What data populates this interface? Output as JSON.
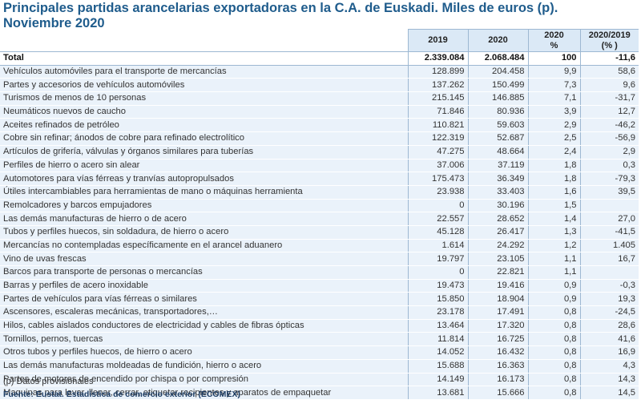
{
  "title_line1": "Principales partidas arancelarias exportadoras en la C.A. de Euskadi. Miles de euros (p).",
  "title_line2": "Noviembre 2020",
  "headers": {
    "col2019": "2019",
    "col2020": "2020",
    "col_share_top": "2020",
    "col_share_bottom": "%",
    "col_var_top": "2020/2019",
    "col_var_bottom": "(% )"
  },
  "total": {
    "label": "Total",
    "v2019": "2.339.084",
    "v2020": "2.068.484",
    "share": "100",
    "var": "-11,6"
  },
  "rows": [
    {
      "label": "Vehículos automóviles para el transporte de mercancías",
      "v2019": "128.899",
      "v2020": "204.458",
      "share": "9,9",
      "var": "58,6"
    },
    {
      "label": "Partes y accesorios de vehículos automóviles",
      "v2019": "137.262",
      "v2020": "150.499",
      "share": "7,3",
      "var": "9,6"
    },
    {
      "label": "Turismos de menos de  10 personas",
      "v2019": "215.145",
      "v2020": "146.885",
      "share": "7,1",
      "var": "-31,7"
    },
    {
      "label": "Neumáticos nuevos de caucho",
      "v2019": "71.846",
      "v2020": "80.936",
      "share": "3,9",
      "var": "12,7"
    },
    {
      "label": "Aceites refinados de petróleo",
      "v2019": "110.821",
      "v2020": "59.603",
      "share": "2,9",
      "var": "-46,2"
    },
    {
      "label": "Cobre sin refinar; ánodos de cobre para refinado electrolítico",
      "v2019": "122.319",
      "v2020": "52.687",
      "share": "2,5",
      "var": "-56,9"
    },
    {
      "label": "Artículos de grifería, válvulas y órganos similares para tuberías",
      "v2019": "47.275",
      "v2020": "48.664",
      "share": "2,4",
      "var": "2,9"
    },
    {
      "label": "Perfiles de hierro o acero sin alear",
      "v2019": "37.006",
      "v2020": "37.119",
      "share": "1,8",
      "var": "0,3"
    },
    {
      "label": "Automotores para vías férreas y tranvías autopropulsados",
      "v2019": "175.473",
      "v2020": "36.349",
      "share": "1,8",
      "var": "-79,3"
    },
    {
      "label": "Útiles intercambiables para herramientas de mano o máquinas herramienta",
      "v2019": "23.938",
      "v2020": "33.403",
      "share": "1,6",
      "var": "39,5"
    },
    {
      "label": "Remolcadores y barcos empujadores",
      "v2019": "0",
      "v2020": "30.196",
      "share": "1,5",
      "var": ""
    },
    {
      "label": "Las demás manufacturas de hierro o de acero",
      "v2019": "22.557",
      "v2020": "28.652",
      "share": "1,4",
      "var": "27,0"
    },
    {
      "label": "Tubos y perfiles huecos, sin soldadura, de hierro o acero",
      "v2019": "45.128",
      "v2020": "26.417",
      "share": "1,3",
      "var": "-41,5"
    },
    {
      "label": "Mercancías no contempladas específicamente en el arancel aduanero",
      "v2019": "1.614",
      "v2020": "24.292",
      "share": "1,2",
      "var": "1.405"
    },
    {
      "label": "Vino de uvas frescas",
      "v2019": "19.797",
      "v2020": "23.105",
      "share": "1,1",
      "var": "16,7"
    },
    {
      "label": "Barcos para transporte de personas o mercancías",
      "v2019": "0",
      "v2020": "22.821",
      "share": "1,1",
      "var": ""
    },
    {
      "label": "Barras y perfiles de acero inoxidable",
      "v2019": "19.473",
      "v2020": "19.416",
      "share": "0,9",
      "var": "-0,3"
    },
    {
      "label": "Partes de vehículos para vías férreas o similares",
      "v2019": "15.850",
      "v2020": "18.904",
      "share": "0,9",
      "var": "19,3"
    },
    {
      "label": "Ascensores, escaleras mecánicas, transportadores,…",
      "v2019": "23.178",
      "v2020": "17.491",
      "share": "0,8",
      "var": "-24,5"
    },
    {
      "label": "Hilos, cables aislados conductores de electricidad y cables de fibras ópticas",
      "v2019": "13.464",
      "v2020": "17.320",
      "share": "0,8",
      "var": "28,6"
    },
    {
      "label": "Tornillos, pernos, tuercas",
      "v2019": "11.814",
      "v2020": "16.725",
      "share": "0,8",
      "var": "41,6"
    },
    {
      "label": "Otros tubos y perfiles huecos, de hierro o acero",
      "v2019": "14.052",
      "v2020": "16.432",
      "share": "0,8",
      "var": "16,9"
    },
    {
      "label": "Las demás manufacturas moldeadas de fundición, hierro o acero",
      "v2019": "15.688",
      "v2020": "16.363",
      "share": "0,8",
      "var": "4,3"
    },
    {
      "label": "Partes de motores de encendido por chispa o por compresión",
      "v2019": "14.149",
      "v2020": "16.173",
      "share": "0,8",
      "var": "14,3"
    },
    {
      "label": "Maquinas para lavar, llenar, cerrar, etiquetar recipientes  y aparatos de empaquetar",
      "v2019": "13.681",
      "v2020": "15.666",
      "share": "0,8",
      "var": "14,5"
    }
  ],
  "note": "(p) Datos provisionales",
  "source": "Fuente: Eustat. Estadística de comercio exterior (ECOMEX)"
}
